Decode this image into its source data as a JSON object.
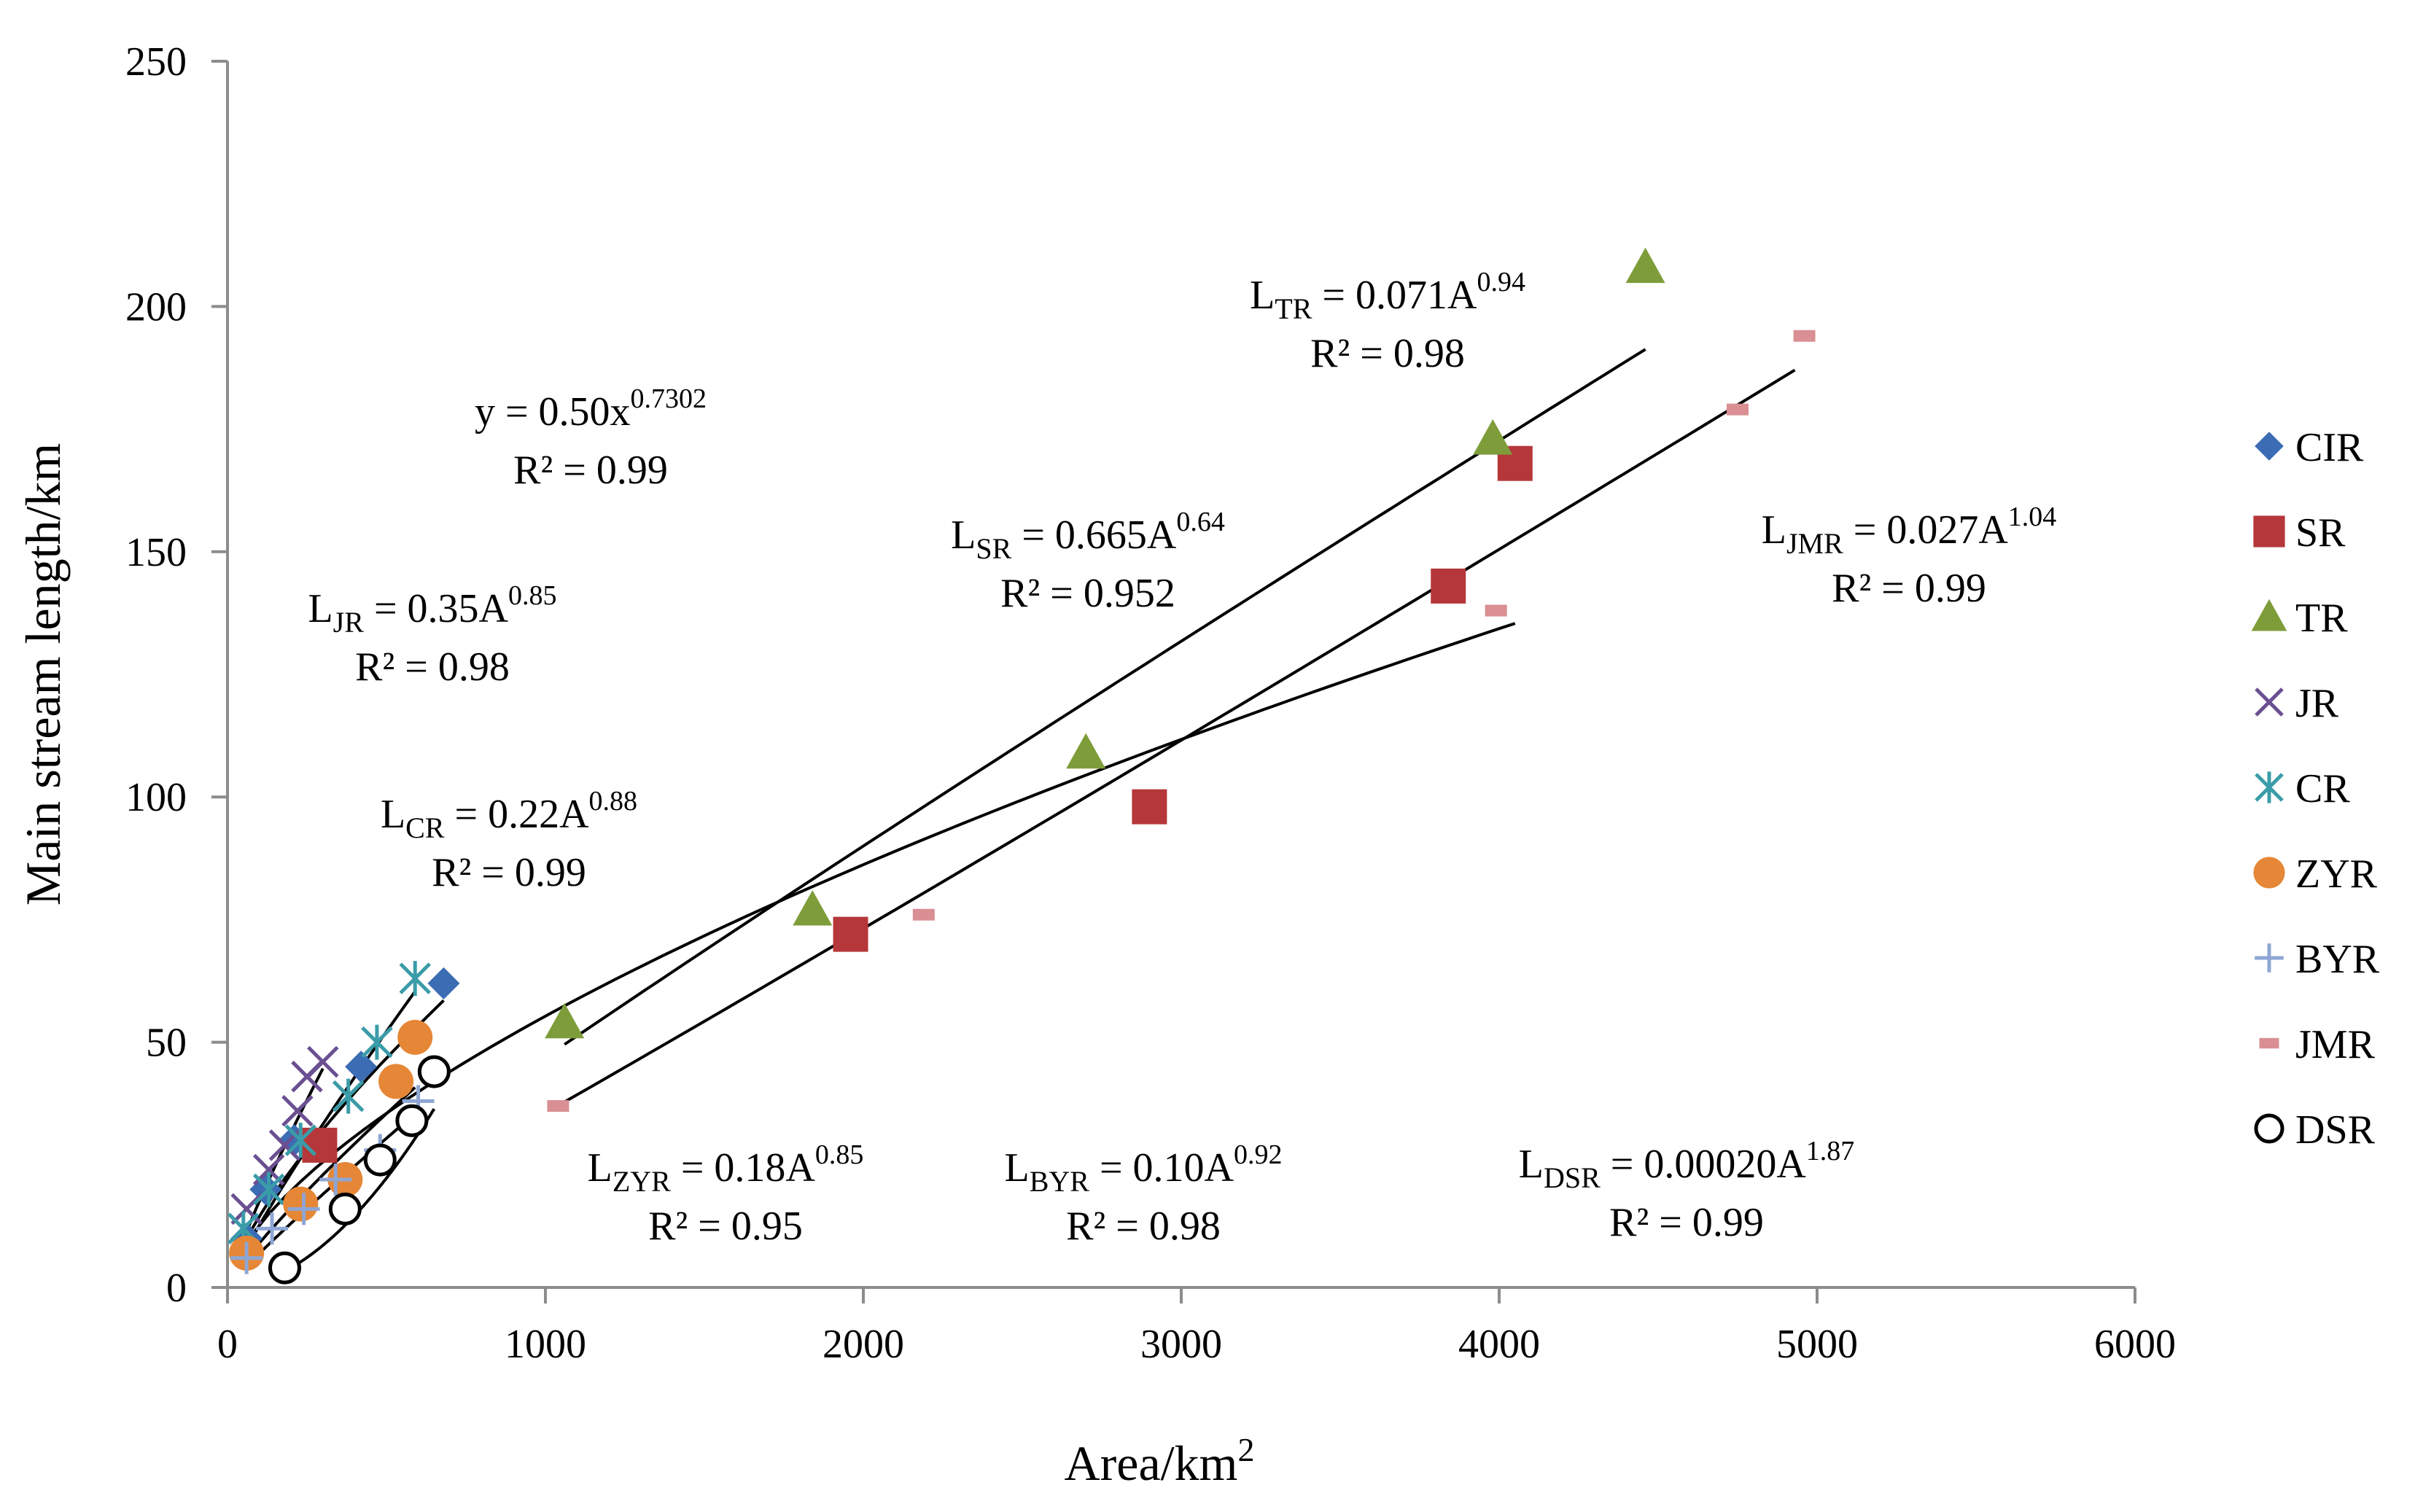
{
  "chart_data": {
    "type": "scatter",
    "xlabel": "Area/km",
    "xlabel_sup": "2",
    "ylabel": "Main stream length/km",
    "xlim": [
      0,
      6000
    ],
    "ylim": [
      0,
      250
    ],
    "x_ticks": [
      0,
      1000,
      2000,
      3000,
      4000,
      5000,
      6000
    ],
    "y_ticks": [
      0,
      50,
      100,
      150,
      200,
      250
    ],
    "x_tick_labels": [
      "0",
      "1000",
      "2000",
      "3000",
      "4000",
      "5000",
      "6000"
    ],
    "y_tick_labels": [
      "0",
      "50",
      "100",
      "150",
      "200",
      "250"
    ],
    "grid": false,
    "legend_position": "right",
    "series": [
      {
        "name": "CIR",
        "marker": "diamond",
        "color": "#3B6CB4",
        "points": [
          [
            60,
            10
          ],
          [
            120,
            20
          ],
          [
            210,
            30
          ],
          [
            420,
            45
          ],
          [
            680,
            62
          ]
        ]
      },
      {
        "name": "SR",
        "marker": "square",
        "color": "#B5373A",
        "points": [
          [
            290,
            29
          ],
          [
            1960,
            72
          ],
          [
            2900,
            98
          ],
          [
            3840,
            143
          ],
          [
            4050,
            168
          ]
        ]
      },
      {
        "name": "TR",
        "marker": "triangle",
        "color": "#7E9D3A",
        "points": [
          [
            1060,
            54
          ],
          [
            1840,
            77
          ],
          [
            2700,
            109
          ],
          [
            3980,
            173
          ],
          [
            4460,
            208
          ]
        ]
      },
      {
        "name": "JR",
        "marker": "x",
        "color": "#6A4F91",
        "points": [
          [
            60,
            16
          ],
          [
            130,
            24
          ],
          [
            180,
            29
          ],
          [
            220,
            36
          ],
          [
            250,
            43
          ],
          [
            300,
            46
          ]
        ]
      },
      {
        "name": "CR",
        "marker": "asterisk",
        "color": "#3A9CA8",
        "points": [
          [
            50,
            12
          ],
          [
            130,
            20
          ],
          [
            230,
            30
          ],
          [
            380,
            39
          ],
          [
            470,
            50
          ],
          [
            590,
            63
          ]
        ]
      },
      {
        "name": "ZYR",
        "marker": "circle",
        "color": "#E58736",
        "points": [
          [
            60,
            7
          ],
          [
            230,
            17
          ],
          [
            370,
            22
          ],
          [
            530,
            42
          ],
          [
            590,
            51
          ]
        ]
      },
      {
        "name": "BYR",
        "marker": "plus",
        "color": "#8EA6D4",
        "points": [
          [
            60,
            6
          ],
          [
            140,
            12
          ],
          [
            240,
            16
          ],
          [
            340,
            22
          ],
          [
            480,
            28
          ],
          [
            600,
            38
          ]
        ]
      },
      {
        "name": "JMR",
        "marker": "dash",
        "color": "#D98F93",
        "points": [
          [
            1040,
            37
          ],
          [
            2190,
            76
          ],
          [
            3990,
            138
          ],
          [
            4750,
            179
          ],
          [
            4960,
            194
          ]
        ]
      },
      {
        "name": "DSR",
        "marker": "open-circle",
        "color": "#000000",
        "points": [
          [
            180,
            4
          ],
          [
            370,
            16
          ],
          [
            480,
            26
          ],
          [
            580,
            34
          ],
          [
            650,
            44
          ]
        ]
      }
    ],
    "trendlines": [
      {
        "name": "CIR",
        "a": 0.5,
        "b": 0.7302,
        "x_range": [
          60,
          680
        ]
      },
      {
        "name": "JR",
        "a": 0.35,
        "b": 0.85,
        "x_range": [
          60,
          300
        ]
      },
      {
        "name": "CR",
        "a": 0.22,
        "b": 0.88,
        "x_range": [
          50,
          590
        ]
      },
      {
        "name": "ZYR",
        "a": 0.18,
        "b": 0.85,
        "x_range": [
          60,
          590
        ]
      },
      {
        "name": "BYR",
        "a": 0.1,
        "b": 0.92,
        "x_range": [
          60,
          600
        ]
      },
      {
        "name": "DSR",
        "a": 0.0002,
        "b": 1.87,
        "x_range": [
          180,
          650
        ]
      },
      {
        "name": "SR",
        "a": 0.665,
        "b": 0.64,
        "x_range": [
          80,
          4050
        ]
      },
      {
        "name": "TR",
        "a": 0.071,
        "b": 0.94,
        "x_range": [
          1060,
          4460
        ]
      },
      {
        "name": "JMR",
        "a": 0.027,
        "b": 1.04,
        "x_range": [
          1040,
          4930
        ]
      }
    ],
    "annotations": [
      {
        "id": "cir",
        "pre": "y = 0.50x",
        "sub": "",
        "sup": "0.7302",
        "r2": "R² = 0.99"
      },
      {
        "id": "jr",
        "pre": "L",
        "sub": "JR",
        "mid": " = 0.35A",
        "sup": "0.85",
        "r2": "R² = 0.98"
      },
      {
        "id": "cr",
        "pre": "L",
        "sub": "CR",
        "mid": " = 0.22A",
        "sup": "0.88",
        "r2": "R² = 0.99"
      },
      {
        "id": "zyr",
        "pre": "L",
        "sub": "ZYR",
        "mid": " = 0.18A",
        "sup": "0.85",
        "r2": "R² = 0.95"
      },
      {
        "id": "byr",
        "pre": "L",
        "sub": "BYR",
        "mid": " = 0.10A",
        "sup": "0.92",
        "r2": "R² = 0.98"
      },
      {
        "id": "dsr",
        "pre": "L",
        "sub": "DSR",
        "mid": " = 0.00020A",
        "sup": "1.87",
        "r2": "R² = 0.99"
      },
      {
        "id": "sr",
        "pre": "L",
        "sub": "SR",
        "mid": " = 0.665A",
        "sup": "0.64",
        "r2": "R² = 0.952"
      },
      {
        "id": "tr",
        "pre": "L",
        "sub": "TR",
        "mid": " = 0.071A",
        "sup": "0.94",
        "r2": "R² = 0.98"
      },
      {
        "id": "jmr",
        "pre": "L",
        "sub": "JMR",
        "mid": " = 0.027A",
        "sup": "1.04",
        "r2": "R² = 0.99"
      }
    ]
  }
}
